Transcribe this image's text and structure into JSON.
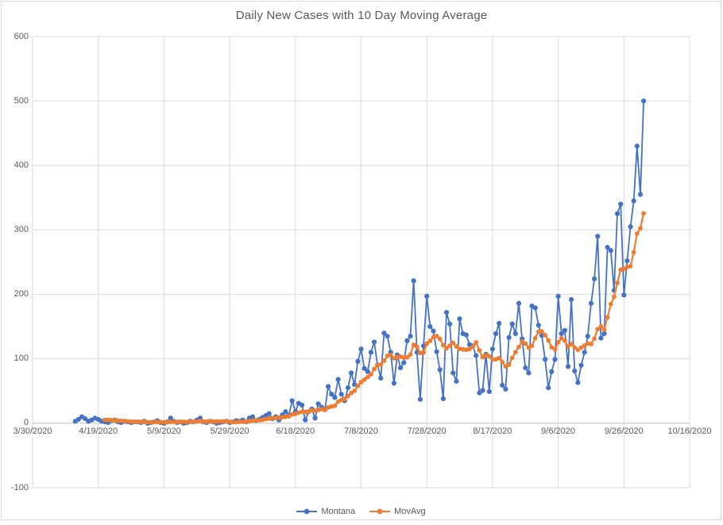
{
  "window": {
    "background": "#FFFFFF",
    "frame_border_color": "#D9D9D9"
  },
  "chart_data": {
    "type": "line",
    "title": "Daily New Cases with 10 Day Moving Average",
    "title_color": "#595959",
    "grid": true,
    "gridline_color": "#D9D9D9",
    "zero_axis_color": "#BFBFBF",
    "legend_position": "bottom",
    "x_axis": {
      "type": "date",
      "range": [
        "3/30/2020",
        "10/16/2020"
      ],
      "tick_interval_days": 20,
      "tick_labels": [
        "3/30/2020",
        "4/19/2020",
        "5/9/2020",
        "5/29/2020",
        "6/18/2020",
        "7/8/2020",
        "7/28/2020",
        "8/17/2020",
        "9/6/2020",
        "9/26/2020",
        "10/16/2020"
      ]
    },
    "y_axis": {
      "min": -100,
      "max": 600,
      "step": 100,
      "tick_labels": [
        "600",
        "500",
        "400",
        "300",
        "200",
        "100",
        "0",
        "-100"
      ]
    },
    "series_start_date": "4/12/2020",
    "series_end_date": "10/2/2020",
    "series": [
      {
        "name": "Montana",
        "color": "#4472C4",
        "marker": "circle",
        "values": [
          3,
          6,
          10,
          7,
          3,
          5,
          8,
          6,
          3,
          2,
          1,
          4,
          5,
          2,
          1,
          3,
          2,
          1,
          2,
          2,
          1,
          3,
          0,
          1,
          2,
          4,
          1,
          0,
          2,
          8,
          3,
          1,
          2,
          0,
          1,
          3,
          2,
          5,
          8,
          2,
          1,
          3,
          2,
          0,
          1,
          2,
          3,
          1,
          2,
          4,
          3,
          5,
          2,
          8,
          10,
          4,
          6,
          9,
          12,
          15,
          7,
          10,
          5,
          13,
          18,
          12,
          35,
          18,
          31,
          28,
          5,
          18,
          22,
          8,
          30,
          25,
          21,
          57,
          45,
          40,
          68,
          45,
          35,
          55,
          78,
          60,
          96,
          115,
          85,
          80,
          110,
          126,
          90,
          70,
          140,
          135,
          110,
          62,
          106,
          86,
          94,
          128,
          135,
          221,
          110,
          37,
          120,
          197,
          150,
          143,
          111,
          83,
          38,
          172,
          154,
          78,
          65,
          162,
          139,
          137,
          122,
          120,
          105,
          47,
          51,
          107,
          49,
          115,
          139,
          155,
          59,
          53,
          133,
          154,
          139,
          186,
          131,
          86,
          78,
          182,
          179,
          152,
          136,
          99,
          55,
          80,
          99,
          197,
          139,
          144,
          88,
          192,
          81,
          63,
          90,
          110,
          135,
          186,
          224,
          290,
          132,
          139,
          273,
          268,
          206,
          325,
          340,
          199,
          252,
          305,
          345,
          430,
          355,
          500
        ]
      },
      {
        "name": "MovAvg",
        "color": "#ED7D31",
        "marker": "circle",
        "derived": "trailing moving average of Montana",
        "window": 10
      }
    ]
  }
}
